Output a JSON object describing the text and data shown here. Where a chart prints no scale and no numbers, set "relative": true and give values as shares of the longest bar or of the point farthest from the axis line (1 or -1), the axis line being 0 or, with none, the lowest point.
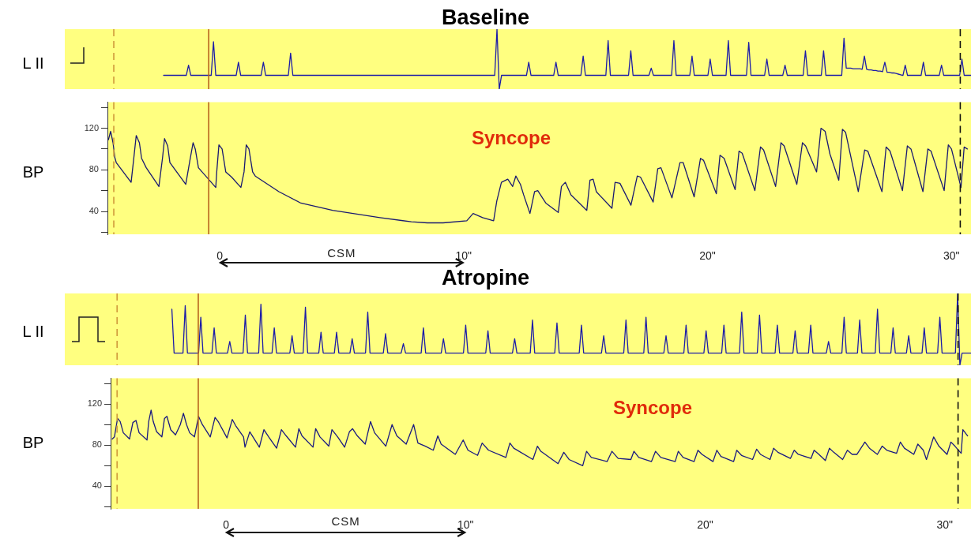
{
  "chart_data": [
    {
      "type": "line",
      "title": "Baseline",
      "ylabel": "L II",
      "relative": true,
      "color": "#1c1ca8",
      "categories": [
        null,
        null,
        null,
        null,
        null,
        null,
        null,
        null,
        null,
        null,
        null,
        null,
        null,
        null,
        null,
        null,
        null,
        null,
        null,
        null,
        null,
        null,
        null,
        null,
        null,
        null,
        null,
        null,
        null,
        null,
        null,
        null,
        null,
        null,
        null,
        null,
        null,
        null,
        null,
        null,
        null,
        null,
        null,
        null,
        null,
        null,
        null,
        null,
        null,
        null,
        null,
        null,
        null,
        null,
        null,
        null,
        null,
        null,
        null,
        null,
        null,
        null,
        null,
        null,
        null,
        null,
        null,
        null,
        null,
        null,
        null,
        null,
        null,
        null,
        null,
        null,
        null,
        null,
        null,
        null,
        null,
        null,
        null,
        null,
        null,
        null,
        null,
        null,
        null,
        null,
        null,
        null,
        null,
        null,
        null,
        null,
        null,
        null,
        null,
        null,
        null,
        null,
        null,
        null,
        null,
        null,
        null,
        null,
        null,
        null,
        null,
        null,
        null,
        null,
        null,
        null,
        null,
        null,
        null,
        null,
        null,
        null,
        null,
        null,
        null,
        null,
        null,
        null,
        null,
        null,
        null,
        null,
        null,
        null,
        null,
        null,
        null,
        null,
        null,
        null,
        null,
        null,
        null,
        null,
        null,
        null,
        null,
        null,
        null,
        null,
        null,
        null,
        null,
        null,
        null,
        null,
        null,
        null,
        null,
        null,
        null,
        null,
        null,
        null,
        null,
        null,
        null,
        null,
        null,
        null,
        null,
        null,
        null,
        null,
        null,
        null,
        null,
        null,
        null,
        null,
        null,
        null,
        null,
        null,
        null,
        null,
        null,
        null,
        null,
        null,
        null,
        null,
        null,
        null,
        null,
        null,
        null,
        null,
        null,
        null,
        null,
        null,
        null,
        null,
        null,
        null,
        null,
        null,
        null,
        null,
        null,
        null,
        null,
        null,
        null,
        null,
        null,
        null,
        null,
        null,
        null,
        null,
        null,
        null,
        null,
        null,
        null,
        null,
        null,
        null,
        null,
        null,
        null,
        null,
        null,
        null,
        null,
        null,
        null,
        null,
        null,
        null,
        null,
        null,
        null,
        null,
        null,
        null,
        null,
        null,
        null,
        null,
        null,
        null,
        null,
        null,
        null,
        null,
        null,
        null,
        null,
        null,
        null,
        null,
        null,
        null,
        null,
        null,
        null,
        null,
        null,
        null,
        null,
        null,
        null,
        null,
        null,
        null,
        null,
        null,
        null,
        null,
        null,
        null,
        null,
        null,
        null,
        null,
        null,
        null,
        null,
        null,
        null,
        null,
        null,
        null,
        null,
        null,
        null,
        null,
        null,
        null,
        null,
        null,
        null,
        null,
        null,
        null,
        null,
        null,
        null,
        null,
        null,
        null,
        null,
        null,
        null,
        null,
        null,
        null,
        null,
        null,
        null,
        null,
        null,
        null,
        null,
        null,
        null,
        null,
        null,
        null,
        null,
        null,
        null,
        null,
        null,
        null,
        null,
        null,
        null,
        null,
        null,
        null,
        null,
        null,
        null,
        null,
        null,
        null,
        null,
        null,
        null,
        null,
        null,
        null,
        null,
        null,
        null,
        null,
        null,
        null,
        null,
        null,
        null,
        null,
        null,
        null,
        null,
        null,
        null,
        null
      ],
      "values": [
        null,
        null,
        null,
        null,
        null,
        null,
        null,
        null,
        null,
        null,
        null,
        null,
        null,
        null,
        null,
        0.23,
        0.23,
        0.23,
        0.23,
        0.23,
        0.23,
        0.23,
        0.23,
        0.23,
        0.23,
        0.23,
        0.4,
        0.23,
        0.23,
        0.23,
        0.23,
        0.23,
        0.23,
        0.23,
        0.23,
        0.23,
        0.23,
        0.79,
        0.23,
        0.23,
        0.23,
        0.23,
        0.23,
        0.23,
        0.23,
        0.23,
        0.23,
        0.23,
        0.45,
        0.23,
        0.23,
        0.23,
        0.23,
        0.23,
        0.23,
        0.23,
        0.23,
        0.23,
        0.23,
        0.45,
        0.23,
        0.23,
        0.23,
        0.23,
        0.23,
        0.23,
        0.23,
        0.23,
        0.23,
        0.23,
        0.23,
        0.6,
        0.23,
        0.23,
        0.23,
        0.23,
        0.23,
        0.23,
        0.23,
        0.23,
        0.23,
        0.23,
        0.23,
        0.23,
        0.23,
        0.23,
        0.23,
        0.23,
        0.23,
        0.23,
        0.23,
        0.23,
        0.23,
        0.23,
        0.23,
        0.23,
        0.23,
        0.23,
        0.23,
        0.23,
        0.23,
        0.23,
        0.23,
        0.23,
        0.23,
        0.23,
        0.23,
        0.23,
        0.23,
        0.23,
        0.23,
        0.23,
        0.23,
        0.23,
        0.23,
        0.23,
        0.23,
        0.23,
        0.23,
        0.23,
        0.23,
        0.23,
        0.23,
        0.23,
        0.23,
        0.23,
        0.23,
        0.23,
        0.23,
        0.23,
        0.23,
        0.23,
        0.23,
        0.23,
        0.23,
        0.23,
        0.23,
        0.23,
        0.23,
        0.23,
        0.23,
        0.23,
        0.23,
        0.23,
        0.23,
        0.23,
        0.23,
        0.23,
        0.23,
        0.23,
        0.23,
        0.23,
        0.23,
        0.23,
        0.23,
        0.23,
        0.23,
        0.23,
        0.23,
        0.23,
        0.23,
        0.23,
        1,
        0,
        0.23,
        0.23,
        0.23,
        0.23,
        0.23,
        0.23,
        0.23,
        0.23,
        0.23,
        0.23,
        0.23,
        0.23,
        0.45,
        0.23,
        0.23,
        0.23,
        0.23,
        0.23,
        0.23,
        0.23,
        0.23,
        0.23,
        0.23,
        0.23,
        0.45,
        0.23,
        0.23,
        0.23,
        0.23,
        0.23,
        0.23,
        0.23,
        0.23,
        0.23,
        0.23,
        0.23,
        0.55,
        0.23,
        0.23,
        0.23,
        0.23,
        0.23,
        0.23,
        0.23,
        0.23,
        0.23,
        0.23,
        0.81,
        0.23,
        0.23,
        0.23,
        0.23,
        0.23,
        0.23,
        0.23,
        0.23,
        0.23,
        0.64,
        0.23,
        0.23,
        0.23,
        0.23,
        0.23,
        0.23,
        0.23,
        0.23,
        0.35,
        0.23,
        0.23,
        0.23,
        0.23,
        0.23,
        0.23,
        0.23,
        0.23,
        0.23,
        0.81,
        0.23,
        0.23,
        0.23,
        0.23,
        0.23,
        0.23,
        0.23,
        0.55,
        0.23,
        0.23,
        0.23,
        0.23,
        0.23,
        0.23,
        0.23,
        0.5,
        0.23,
        0.23,
        0.23,
        0.23,
        0.23,
        0.23,
        0.23,
        0.81,
        0.23,
        0.23,
        0.23,
        0.23,
        0.23,
        0.23,
        0.23,
        0.23,
        0.78,
        0.23,
        0.23,
        0.23,
        0.23,
        0.23,
        0.23,
        0.23,
        0.5,
        0.23,
        0.23,
        0.23,
        0.23,
        0.23,
        0.23,
        0.23,
        0.4,
        0.23,
        0.23,
        0.23,
        0.23,
        0.23,
        0.23,
        0.23,
        0.23,
        0.64,
        0.23,
        0.23,
        0.23,
        0.23,
        0.23,
        0.23,
        0.23,
        0.64,
        0.23,
        0.23,
        0.23,
        0.23,
        0.23,
        0.23,
        0.23,
        0.23,
        0.85,
        0.35,
        0.35,
        0.35,
        0.34,
        0.34,
        0.34,
        0.34,
        0.33,
        0.55,
        0.33,
        0.32,
        0.32,
        0.31,
        0.31,
        0.3,
        0.3,
        0.29,
        0.45,
        0.28,
        0.28,
        0.27,
        0.27,
        0.26,
        0.25,
        0.24,
        0.23,
        0.4,
        0.23,
        0.23,
        0.23,
        0.23,
        0.23,
        0.23,
        0.23,
        0.45,
        0.23,
        0.23,
        0.23,
        0.23,
        0.23,
        0.23,
        0.23,
        0.4,
        0.23,
        0.23,
        0.23,
        0.23,
        0.23,
        0.23,
        0.23,
        0.23,
        0.5,
        0.23,
        0.23,
        0.23,
        0.23
      ]
    },
    {
      "type": "line",
      "ylabel": "BP",
      "color": "#1a1a70",
      "xlim": [
        -4.6,
        30.8
      ],
      "ylim": [
        18,
        145
      ],
      "xticks": [
        0,
        {
          "value": 10,
          "label": "10\""
        },
        {
          "value": 20,
          "label": "20\""
        },
        {
          "value": 30,
          "label": "30\""
        }
      ],
      "yticks": [
        {
          "value": 20,
          "label": null
        },
        40,
        {
          "value": 60,
          "label": null
        },
        80,
        {
          "value": 100,
          "label": null
        },
        120,
        {
          "value": 140,
          "label": null
        }
      ],
      "x": [
        -4.56,
        -4.47,
        -4.37,
        -4.3,
        -4.24,
        -3.63,
        -3.53,
        -3.42,
        -3.29,
        -3.2,
        -3.01,
        -2.49,
        -2.34,
        -2.26,
        -2.13,
        -2.04,
        -1.39,
        -1.22,
        -1.09,
        -1,
        -0.87,
        -0.16,
        -0.12,
        -0.03,
        0.1,
        0.25,
        0.49,
        0.87,
        1,
        1.09,
        1.2,
        1.35,
        1.46,
        2.43,
        3.33,
        4.63,
        6.57,
        7.86,
        8.51,
        9.16,
        10.13,
        10.39,
        10.78,
        11.23,
        11.36,
        11.55,
        11.81,
        12.01,
        12.14,
        12.33,
        12.46,
        12.72,
        12.91,
        13.04,
        13.37,
        13.88,
        14.01,
        14.17,
        14.4,
        15.05,
        15.18,
        15.31,
        15.44,
        16.08,
        16.21,
        16.41,
        16.86,
        17.12,
        17.25,
        17.77,
        17.96,
        18.09,
        18.54,
        18.87,
        19,
        19.45,
        19.71,
        19.84,
        20.36,
        20.51,
        20.68,
        21.13,
        21.29,
        21.42,
        21.94,
        22.17,
        22.3,
        22.79,
        23.01,
        23.14,
        23.66,
        23.89,
        24.02,
        24.47,
        24.65,
        24.82,
        25.02,
        25.38,
        25.53,
        25.66,
        26.18,
        26.44,
        26.57,
        27.15,
        27.32,
        27.48,
        27.99,
        28.19,
        28.34,
        28.83,
        29.03,
        29.16,
        29.7,
        29.87,
        30,
        30.39,
        30.52,
        30.65
      ],
      "values": [
        109,
        117,
        106,
        92,
        87,
        68,
        89,
        113,
        106,
        91,
        82,
        64,
        92,
        110,
        103,
        87,
        66,
        89,
        106,
        100,
        82,
        63,
        78,
        104,
        100,
        78,
        73,
        63,
        78,
        104,
        100,
        78,
        74,
        59,
        48,
        41,
        34,
        30,
        29,
        29,
        31,
        38,
        34,
        31,
        50,
        68,
        71,
        64,
        74,
        66,
        56,
        38,
        59,
        60,
        48,
        39,
        64,
        68,
        56,
        41,
        70,
        71,
        59,
        43,
        68,
        67,
        46,
        74,
        73,
        49,
        81,
        82,
        53,
        87,
        87,
        54,
        91,
        89,
        57,
        94,
        91,
        61,
        98,
        96,
        60,
        102,
        99,
        64,
        106,
        103,
        66,
        106,
        103,
        78,
        120,
        117,
        95,
        70,
        119,
        116,
        59,
        99,
        98,
        59,
        102,
        98,
        60,
        103,
        100,
        59,
        100,
        98,
        60,
        104,
        100,
        63,
        102,
        100
      ],
      "annotations": [
        "Syncope",
        "CSM"
      ],
      "ref_lines": [
        {
          "axis": "x",
          "value": -4.34,
          "color": "#d09a3a",
          "line_style": "dashed"
        },
        {
          "axis": "x",
          "value": -0.45,
          "color": "#b8641e",
          "line_style": "solid"
        },
        {
          "axis": "x",
          "value": 30.36,
          "color": "#111111",
          "line_style": "dashed"
        }
      ]
    },
    {
      "type": "line",
      "title": "Atropine",
      "ylabel": "L II",
      "relative": true,
      "color": "#1c1ca8",
      "categories": [
        null,
        null,
        null,
        null,
        null,
        null,
        null,
        null,
        null,
        null,
        null,
        null,
        null,
        null,
        null,
        null,
        null,
        null,
        null,
        null,
        null,
        null,
        null,
        null,
        null,
        null,
        null,
        null,
        null,
        null,
        null,
        null,
        null,
        null,
        null,
        null,
        null,
        null,
        null,
        null,
        null,
        null,
        null,
        null,
        null,
        null,
        null,
        null,
        null,
        null,
        null,
        null,
        null,
        null,
        null,
        null,
        null,
        null,
        null,
        null,
        null,
        null,
        null,
        null,
        null,
        null,
        null,
        null,
        null,
        null,
        null,
        null,
        null,
        null,
        null,
        null,
        null,
        null,
        null,
        null,
        null,
        null,
        null,
        null,
        null,
        null,
        null,
        null,
        null,
        null,
        null,
        null,
        null,
        null,
        null,
        null,
        null,
        null,
        null,
        null,
        null,
        null,
        null,
        null,
        null,
        null,
        null,
        null,
        null,
        null,
        null,
        null,
        null,
        null,
        null,
        null,
        null,
        null,
        null,
        null,
        null,
        null,
        null,
        null,
        null,
        null,
        null,
        null,
        null,
        null,
        null,
        null,
        null,
        null,
        null,
        null,
        null,
        null,
        null,
        null,
        null,
        null,
        null,
        null,
        null,
        null,
        null,
        null,
        null,
        null,
        null,
        null,
        null,
        null,
        null,
        null,
        null,
        null,
        null,
        null,
        null,
        null,
        null,
        null,
        null,
        null,
        null,
        null,
        null,
        null,
        null,
        null,
        null,
        null,
        null,
        null,
        null,
        null,
        null,
        null,
        null,
        null,
        null,
        null,
        null,
        null,
        null,
        null,
        null,
        null,
        null,
        null,
        null,
        null,
        null,
        null,
        null,
        null,
        null,
        null,
        null,
        null,
        null,
        null,
        null,
        null,
        null,
        null,
        null,
        null,
        null,
        null,
        null,
        null,
        null,
        null,
        null,
        null,
        null,
        null,
        null,
        null,
        null,
        null,
        null,
        null,
        null,
        null,
        null,
        null,
        null,
        null,
        null,
        null,
        null,
        null,
        null,
        null,
        null,
        null,
        null,
        null,
        null,
        null,
        null,
        null,
        null,
        null,
        null,
        null,
        null,
        null,
        null,
        null,
        null,
        null,
        null,
        null,
        null,
        null,
        null,
        null,
        null,
        null,
        null,
        null,
        null,
        null,
        null,
        null,
        null,
        null,
        null,
        null,
        null,
        null,
        null,
        null,
        null,
        null,
        null,
        null,
        null,
        null,
        null,
        null,
        null,
        null,
        null,
        null,
        null,
        null,
        null,
        null,
        null,
        null,
        null,
        null,
        null,
        null,
        null,
        null,
        null,
        null,
        null,
        null,
        null,
        null,
        null,
        null,
        null,
        null,
        null,
        null,
        null,
        null,
        null,
        null,
        null,
        null,
        null,
        null,
        null,
        null,
        null,
        null,
        null,
        null,
        null,
        null,
        null,
        null,
        null,
        null,
        null,
        null,
        null,
        null,
        null,
        null,
        null,
        null,
        null,
        null,
        null,
        null,
        null,
        null,
        null,
        null,
        null,
        null,
        null,
        null,
        null,
        null,
        null,
        null,
        null,
        null,
        null,
        null,
        null,
        null,
        null,
        null,
        null,
        null,
        null,
        null,
        null,
        null,
        null,
        null,
        null,
        null,
        null,
        null,
        null
      ],
      "values": [
        null,
        null,
        null,
        null,
        null,
        null,
        null,
        null,
        null,
        null,
        null,
        null,
        null,
        null,
        null,
        null,
        null,
        null,
        null,
        0.78,
        0.17,
        0.17,
        0.17,
        0.17,
        0.17,
        0.83,
        0.17,
        0.17,
        0.17,
        0.17,
        0.17,
        0.17,
        0.67,
        0.17,
        0.17,
        0.17,
        0.17,
        0.17,
        0.52,
        0.17,
        0.17,
        0.17,
        0.17,
        0.17,
        0.17,
        0.33,
        0.17,
        0.17,
        0.17,
        0.17,
        0.17,
        0.17,
        0.7,
        0.17,
        0.17,
        0.17,
        0.17,
        0.17,
        0.17,
        0.85,
        0.17,
        0.17,
        0.17,
        0.17,
        0.17,
        0.52,
        0.17,
        0.17,
        0.17,
        0.17,
        0.17,
        0.17,
        0.17,
        0.41,
        0.17,
        0.17,
        0.17,
        0.17,
        0.17,
        0.81,
        0.17,
        0.17,
        0.17,
        0.17,
        0.17,
        0.17,
        0.46,
        0.17,
        0.17,
        0.17,
        0.17,
        0.17,
        0.17,
        0.46,
        0.17,
        0.17,
        0.17,
        0.17,
        0.17,
        0.17,
        0.37,
        0.17,
        0.17,
        0.17,
        0.17,
        0.17,
        0.17,
        0.74,
        0.17,
        0.17,
        0.17,
        0.17,
        0.17,
        0.17,
        0.17,
        0.44,
        0.17,
        0.17,
        0.17,
        0.17,
        0.17,
        0.17,
        0.17,
        0.3,
        0.17,
        0.17,
        0.17,
        0.17,
        0.17,
        0.17,
        0.17,
        0.17,
        0.52,
        0.17,
        0.17,
        0.17,
        0.17,
        0.17,
        0.17,
        0.17,
        0.17,
        0.37,
        0.17,
        0.17,
        0.17,
        0.17,
        0.17,
        0.17,
        0.17,
        0.17,
        0.17,
        0.56,
        0.17,
        0.17,
        0.17,
        0.17,
        0.17,
        0.17,
        0.17,
        0.17,
        0.17,
        0.48,
        0.17,
        0.17,
        0.17,
        0.17,
        0.17,
        0.17,
        0.17,
        0.17,
        0.17,
        0.17,
        0.17,
        0.37,
        0.17,
        0.17,
        0.17,
        0.17,
        0.17,
        0.17,
        0.17,
        0.63,
        0.17,
        0.17,
        0.17,
        0.17,
        0.17,
        0.17,
        0.17,
        0.17,
        0.17,
        0.17,
        0.59,
        0.17,
        0.17,
        0.17,
        0.17,
        0.17,
        0.17,
        0.17,
        0.17,
        0.17,
        0.17,
        0.56,
        0.17,
        0.17,
        0.17,
        0.17,
        0.17,
        0.17,
        0.17,
        0.17,
        0.17,
        0.41,
        0.17,
        0.17,
        0.17,
        0.17,
        0.17,
        0.17,
        0.17,
        0.17,
        0.17,
        0.63,
        0.17,
        0.17,
        0.17,
        0.17,
        0.17,
        0.17,
        0.17,
        0.17,
        0.67,
        0.17,
        0.17,
        0.17,
        0.17,
        0.17,
        0.17,
        0.17,
        0.17,
        0.41,
        0.17,
        0.17,
        0.17,
        0.17,
        0.17,
        0.17,
        0.17,
        0.17,
        0.56,
        0.17,
        0.17,
        0.17,
        0.17,
        0.17,
        0.17,
        0.17,
        0.17,
        0.48,
        0.17,
        0.17,
        0.17,
        0.17,
        0.17,
        0.17,
        0.17,
        0.56,
        0.17,
        0.17,
        0.17,
        0.17,
        0.17,
        0.17,
        0.17,
        0.74,
        0.17,
        0.17,
        0.17,
        0.17,
        0.17,
        0.17,
        0.17,
        0.7,
        0.17,
        0.17,
        0.17,
        0.17,
        0.17,
        0.17,
        0.17,
        0.56,
        0.17,
        0.17,
        0.17,
        0.17,
        0.17,
        0.17,
        0.17,
        0.48,
        0.17,
        0.17,
        0.17,
        0.17,
        0.17,
        0.17,
        0.56,
        0.17,
        0.17,
        0.17,
        0.17,
        0.17,
        0.17,
        0.17,
        0.33,
        0.17,
        0.17,
        0.17,
        0.17,
        0.17,
        0.17,
        0.67,
        0.17,
        0.17,
        0.17,
        0.17,
        0.17,
        0.17,
        0.63,
        0.17,
        0.17,
        0.17,
        0.17,
        0.17,
        0.17,
        0.17,
        0.78,
        0.17,
        0.17,
        0.17,
        0.17,
        0.17,
        0.17,
        0.52,
        0.17,
        0.17,
        0.17,
        0.17,
        0.17,
        0.17,
        0.41,
        0.17,
        0.17,
        0.17,
        0.17,
        0.17,
        0.17,
        0.52,
        0.17,
        0.17,
        0.17,
        0.17,
        0.17,
        0.17,
        0.67,
        0.17,
        0.17,
        0.17,
        0.17,
        0.17,
        0.17,
        0.17,
        1,
        0,
        0.17,
        0.17,
        0.17,
        0.17,
        0.17
      ]
    },
    {
      "type": "line",
      "ylabel": "BP",
      "color": "#1a1a80",
      "xlim": [
        -4.82,
        31.1
      ],
      "ylim": [
        18,
        145
      ],
      "xticks": [
        0,
        {
          "value": 10,
          "label": "10\""
        },
        {
          "value": 20,
          "label": "20\""
        },
        {
          "value": 30,
          "label": "30\""
        }
      ],
      "yticks": [
        {
          "value": 20,
          "label": null
        },
        40,
        {
          "value": 60,
          "label": null
        },
        80,
        {
          "value": 100,
          "label": null
        },
        120,
        {
          "value": 140,
          "label": null
        }
      ],
      "x": [
        -4.75,
        -4.66,
        -4.53,
        -4.42,
        -4.29,
        -4.03,
        -3.89,
        -3.76,
        -3.63,
        -3.3,
        -3.23,
        -3.13,
        -3.04,
        -2.9,
        -2.68,
        -2.57,
        -2.47,
        -2.31,
        -2.11,
        -1.91,
        -1.78,
        -1.65,
        -1.52,
        -1.32,
        -1.15,
        -0.99,
        -0.66,
        -0.46,
        -0.33,
        0.04,
        0.26,
        0.4,
        0.73,
        0.79,
        0.99,
        1.39,
        1.58,
        1.78,
        2.11,
        2.31,
        2.51,
        2.9,
        3.04,
        3.17,
        3.63,
        3.74,
        3.92,
        4.29,
        4.42,
        4.66,
        4.95,
        5.15,
        5.28,
        5.48,
        5.81,
        6.03,
        6.2,
        6.67,
        6.93,
        7.13,
        7.52,
        7.83,
        8.01,
        8.32,
        8.65,
        8.84,
        8.98,
        9.57,
        9.9,
        10.1,
        10.5,
        10.69,
        10.96,
        11.68,
        11.85,
        12.01,
        12.81,
        13,
        13.14,
        13.86,
        14.1,
        14.32,
        14.89,
        15.05,
        15.25,
        15.91,
        16.11,
        16.37,
        16.9,
        17.03,
        17.23,
        17.76,
        17.93,
        18.15,
        18.75,
        18.88,
        19.08,
        19.54,
        19.7,
        19.87,
        20.33,
        20.49,
        20.66,
        21.19,
        21.32,
        21.52,
        21.98,
        22.15,
        22.31,
        22.71,
        22.86,
        23.04,
        23.56,
        23.72,
        23.89,
        24.42,
        24.55,
        24.75,
        25.02,
        25.19,
        25.37,
        25.74,
        25.94,
        26.14,
        26.34,
        26.67,
        26.86,
        27.19,
        27.39,
        27.59,
        27.99,
        28.15,
        28.32,
        28.71,
        28.88,
        29.11,
        29.24,
        29.54,
        29.76,
        30.1,
        30.26,
        30.43,
        30.69,
        30.76,
        30.96
      ],
      "values": [
        86,
        88,
        106,
        103,
        92,
        86,
        102,
        104,
        92,
        85,
        103,
        114,
        103,
        93,
        88,
        106,
        108,
        95,
        90,
        100,
        111,
        100,
        92,
        88,
        108,
        100,
        88,
        107,
        103,
        87,
        105,
        99,
        88,
        78,
        93,
        78,
        95,
        88,
        77,
        95,
        89,
        78,
        96,
        89,
        78,
        96,
        88,
        79,
        95,
        88,
        78,
        93,
        96,
        89,
        81,
        103,
        92,
        79,
        100,
        89,
        81,
        100,
        82,
        79,
        75,
        89,
        81,
        71,
        85,
        75,
        70,
        82,
        75,
        68,
        82,
        77,
        66,
        79,
        74,
        62,
        73,
        66,
        60,
        74,
        68,
        64,
        74,
        67,
        66,
        74,
        68,
        64,
        74,
        68,
        64,
        74,
        68,
        64,
        75,
        71,
        64,
        75,
        69,
        64,
        75,
        70,
        66,
        76,
        71,
        66,
        77,
        73,
        67,
        75,
        71,
        67,
        75,
        71,
        65,
        77,
        73,
        66,
        75,
        71,
        71,
        83,
        77,
        71,
        79,
        75,
        72,
        83,
        77,
        71,
        81,
        75,
        66,
        88,
        79,
        71,
        83,
        79,
        72,
        95,
        89
      ],
      "annotations": [
        "Syncope",
        "CSM"
      ],
      "ref_lines": [
        {
          "axis": "x",
          "value": -4.55,
          "color": "#d09a3a",
          "line_style": "dashed"
        },
        {
          "axis": "x",
          "value": -1.16,
          "color": "#b8641e",
          "line_style": "solid"
        },
        {
          "axis": "x",
          "value": 30.56,
          "color": "#111111",
          "line_style": "dashed"
        }
      ]
    }
  ]
}
